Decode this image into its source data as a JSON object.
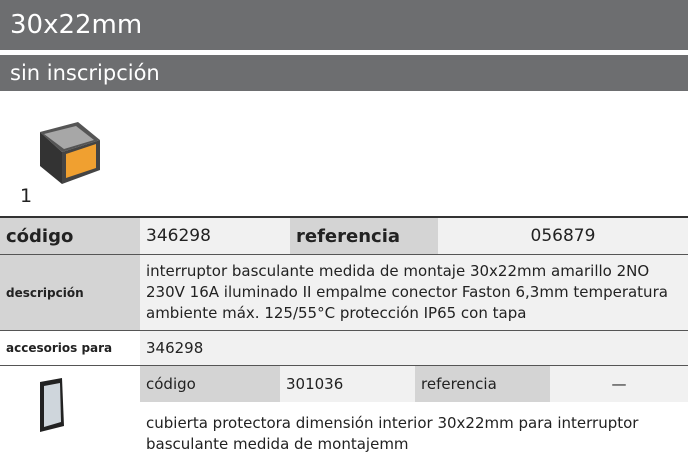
{
  "header": {
    "title": "30x22mm",
    "subtitle": "sin inscripción"
  },
  "product": {
    "index": "1",
    "code_label": "código",
    "code": "346298",
    "reference_label": "referencia",
    "reference": "056879",
    "description_label": "descripción",
    "description": "interruptor basculante  medida de montaje 30x22mm amarillo 2NO 230V 16A iluminado II empalme conector Faston 6,3mm temperatura ambiente máx. 125/55°C protección IP65 con tapa",
    "accessories_label": "accesorios para",
    "accessories_for": "346298"
  },
  "accessory": {
    "code_label": "código",
    "code": "301036",
    "reference_label": "referencia",
    "reference": "—",
    "description": "cubierta protectora  dimensión interior 30x22mm para interruptor basculante medida de montajemm"
  }
}
